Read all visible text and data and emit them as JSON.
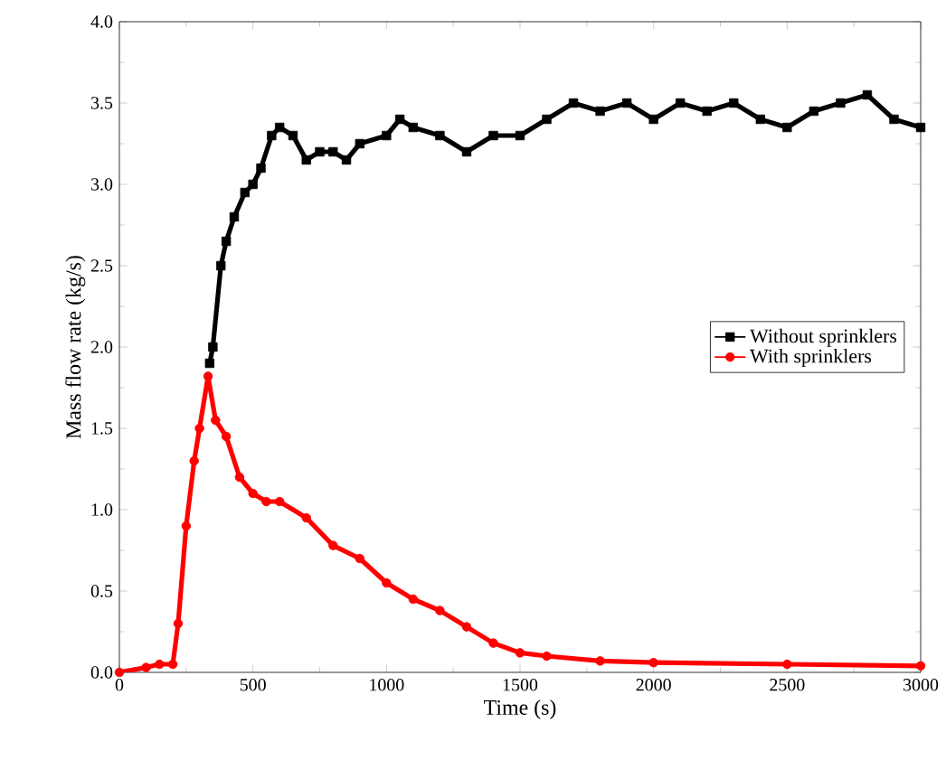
{
  "chart_data": {
    "type": "line",
    "xlabel": "Time (s)",
    "ylabel": "Mass flow rate (kg/s)",
    "xlim": [
      0,
      3000
    ],
    "ylim": [
      0,
      4.0
    ],
    "xticks": [
      0,
      500,
      1000,
      1500,
      2000,
      2500,
      3000
    ],
    "yticks": [
      {
        "value": 0,
        "label": "0.0"
      },
      {
        "value": 0.5,
        "label": "0.5"
      },
      {
        "value": 1.0,
        "label": "1.0"
      },
      {
        "value": 1.5,
        "label": "1.5"
      },
      {
        "value": 2.0,
        "label": "2.0"
      },
      {
        "value": 2.5,
        "label": "2.5"
      },
      {
        "value": 3.0,
        "label": "3.0"
      },
      {
        "value": 3.5,
        "label": "3.5"
      },
      {
        "value": 4.0,
        "label": "4.0"
      }
    ],
    "legend": "right",
    "grid": false,
    "series": [
      {
        "name": "Without sprinklers",
        "color": "#000000",
        "marker": "square",
        "x": [
          338,
          350,
          380,
          400,
          430,
          470,
          500,
          530,
          570,
          600,
          650,
          700,
          750,
          800,
          850,
          900,
          1000,
          1050,
          1100,
          1200,
          1300,
          1400,
          1500,
          1600,
          1700,
          1800,
          1900,
          2000,
          2100,
          2200,
          2300,
          2400,
          2500,
          2600,
          2700,
          2800,
          2900,
          3000
        ],
        "values": [
          1.9,
          2.0,
          2.5,
          2.65,
          2.8,
          2.95,
          3.0,
          3.1,
          3.3,
          3.35,
          3.3,
          3.15,
          3.2,
          3.2,
          3.15,
          3.25,
          3.3,
          3.4,
          3.35,
          3.3,
          3.2,
          3.3,
          3.3,
          3.4,
          3.5,
          3.45,
          3.5,
          3.4,
          3.5,
          3.45,
          3.5,
          3.4,
          3.35,
          3.45,
          3.5,
          3.55,
          3.4,
          3.35
        ]
      },
      {
        "name": "With sprinklers",
        "color": "#ff0000",
        "marker": "circle",
        "x": [
          0,
          100,
          150,
          200,
          220,
          250,
          280,
          300,
          332,
          360,
          400,
          450,
          500,
          550,
          600,
          700,
          800,
          900,
          1000,
          1100,
          1200,
          1300,
          1400,
          1500,
          1600,
          1800,
          2000,
          2500,
          3000
        ],
        "values": [
          0,
          0.03,
          0.05,
          0.05,
          0.3,
          0.9,
          1.3,
          1.5,
          1.82,
          1.55,
          1.45,
          1.2,
          1.1,
          1.05,
          1.05,
          0.95,
          0.78,
          0.7,
          0.55,
          0.45,
          0.38,
          0.28,
          0.18,
          0.12,
          0.1,
          0.07,
          0.06,
          0.05,
          0.04
        ]
      }
    ]
  }
}
